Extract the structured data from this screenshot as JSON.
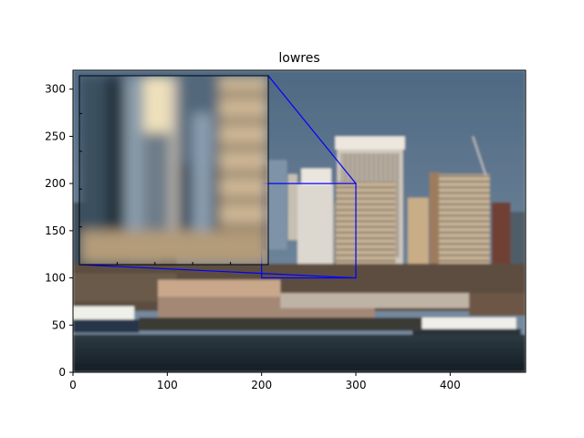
{
  "chart_data": {
    "type": "image",
    "title": "lowres",
    "xlim": [
      0,
      480
    ],
    "ylim": [
      0,
      320
    ],
    "xticks": [
      0,
      100,
      200,
      300,
      400
    ],
    "yticks": [
      0,
      50,
      100,
      150,
      200,
      250,
      300
    ],
    "inset": {
      "xlim": [
        200,
        300
      ],
      "ylim": [
        100,
        200
      ],
      "edge_color": "#0000ff"
    },
    "palette": {
      "sky": "#5f7790",
      "water": "#1d2a33"
    }
  }
}
